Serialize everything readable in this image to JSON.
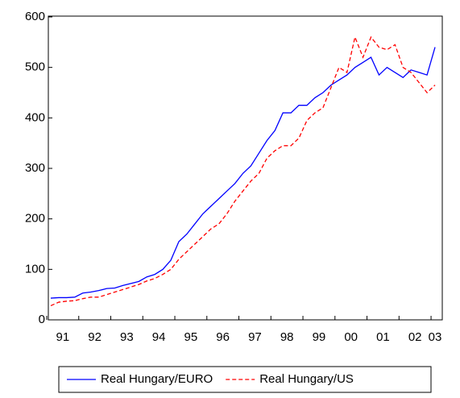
{
  "chart_data": {
    "type": "line",
    "categories": [
      null,
      "91",
      null,
      null,
      null,
      "92",
      null,
      null,
      null,
      "93",
      null,
      null,
      null,
      "94",
      null,
      null,
      null,
      "95",
      null,
      null,
      null,
      "96",
      null,
      null,
      null,
      "97",
      null,
      null,
      null,
      "98",
      null,
      null,
      null,
      "99",
      null,
      null,
      null,
      "00",
      null,
      null,
      null,
      "01",
      null,
      null,
      null,
      "02",
      null,
      null,
      "03"
    ],
    "series": [
      {
        "name": "Real Hungary/EURO",
        "color": "#0000ff",
        "style": "solid",
        "values": [
          43,
          44,
          44,
          45,
          53,
          55,
          58,
          62,
          63,
          68,
          72,
          76,
          85,
          90,
          100,
          118,
          155,
          170,
          190,
          210,
          225,
          240,
          255,
          270,
          290,
          305,
          330,
          355,
          375,
          410,
          410,
          425,
          425,
          440,
          450,
          465,
          475,
          485,
          500,
          510,
          520,
          485,
          500,
          490,
          480,
          495,
          490,
          485,
          540
        ]
      },
      {
        "name": "Real Hungary/US",
        "color": "#ff0000",
        "style": "dashed",
        "values": [
          28,
          35,
          37,
          38,
          42,
          45,
          45,
          50,
          55,
          60,
          65,
          70,
          77,
          82,
          90,
          100,
          120,
          135,
          150,
          165,
          180,
          190,
          210,
          235,
          255,
          275,
          290,
          320,
          335,
          345,
          345,
          360,
          395,
          410,
          420,
          460,
          500,
          490,
          560,
          520,
          560,
          540,
          535,
          545,
          500,
          490,
          470,
          450,
          465
        ]
      }
    ],
    "ylim": [
      0,
      600
    ],
    "yticks": [
      0,
      100,
      200,
      300,
      400,
      500,
      600
    ],
    "grid": false,
    "legend": "bottom"
  }
}
